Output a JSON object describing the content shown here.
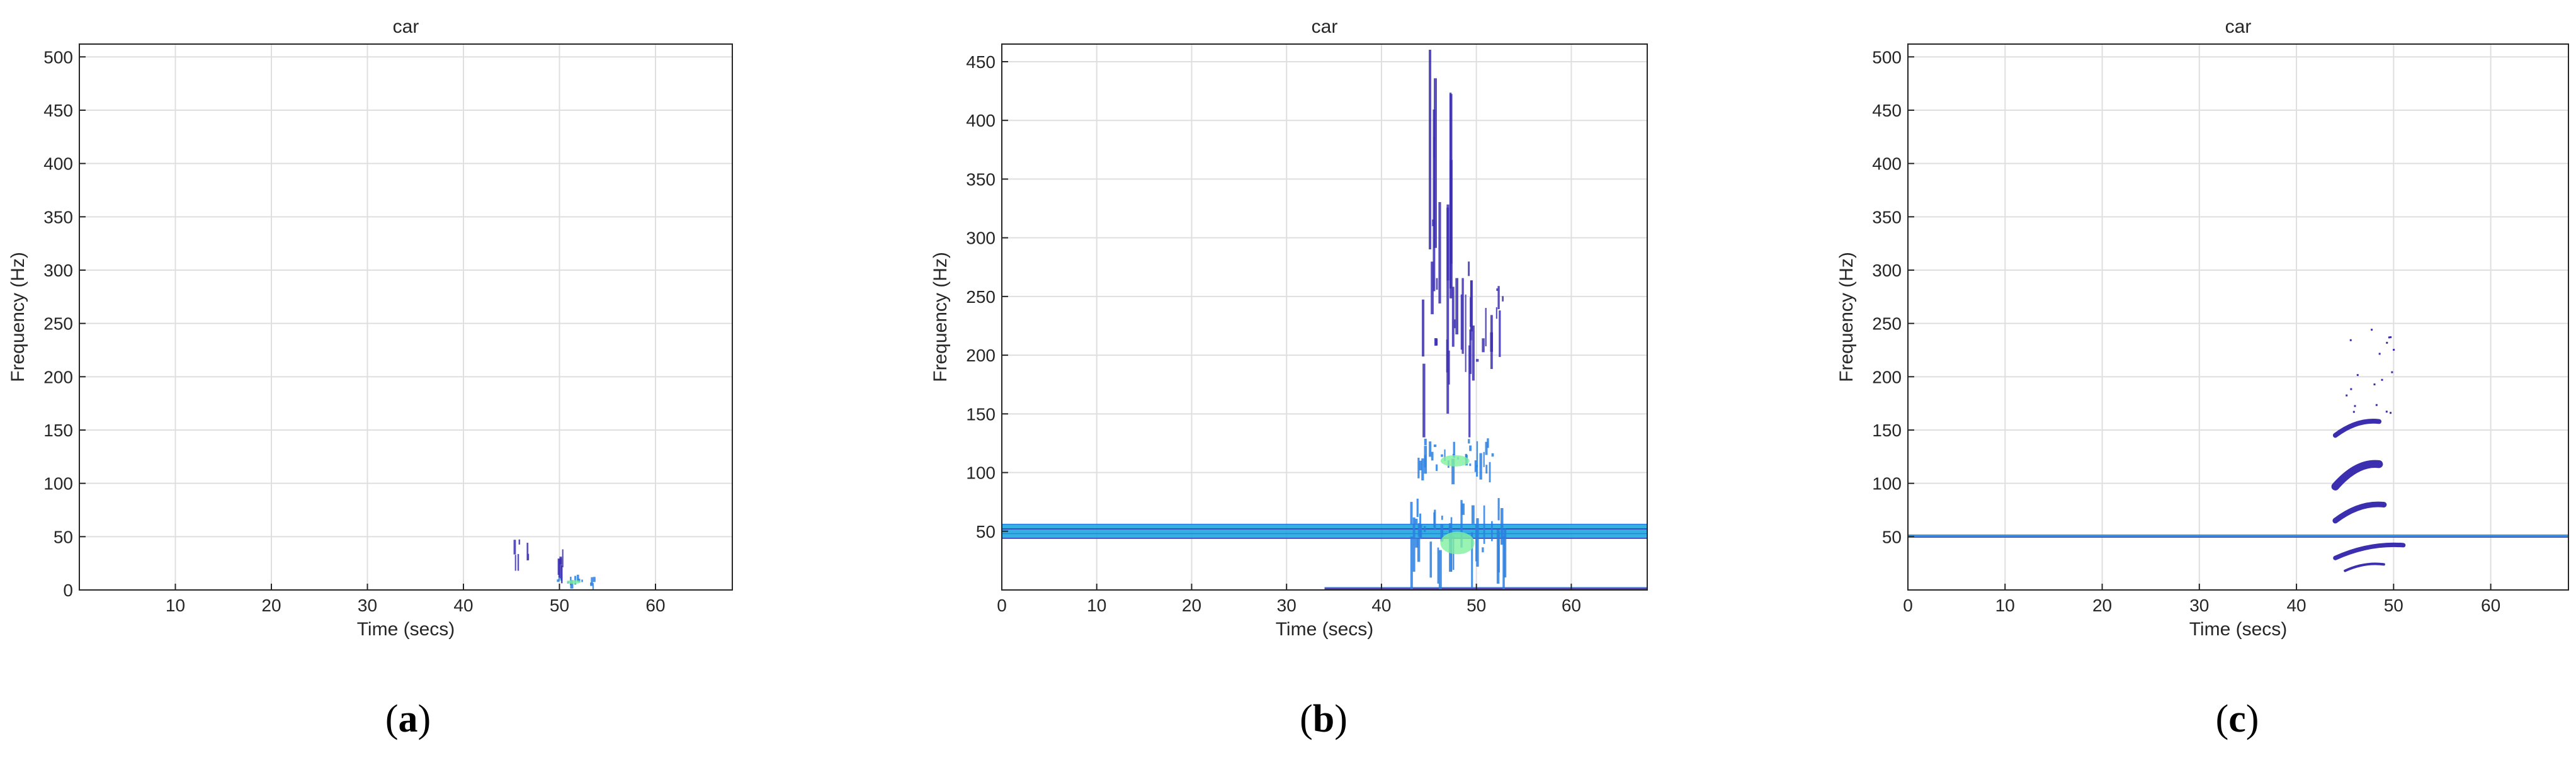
{
  "chart_data": [
    {
      "type": "heatmap",
      "title": "car",
      "xlabel": "Time (secs)",
      "ylabel": "Frequency (Hz)",
      "xlim": [
        0,
        68
      ],
      "ylim": [
        0,
        512
      ],
      "xticks": [
        10,
        20,
        30,
        40,
        50,
        60
      ],
      "yticks": [
        0,
        50,
        100,
        150,
        200,
        250,
        300,
        350,
        400,
        450,
        500
      ],
      "grid": true,
      "caption": "a",
      "features": [
        {
          "kind": "blob",
          "t": [
            45.2,
            46.8
          ],
          "f": [
            18,
            48
          ],
          "level": "low"
        },
        {
          "kind": "blob",
          "t": [
            49.5,
            53.5
          ],
          "f": [
            0,
            15
          ],
          "level": "mid"
        },
        {
          "kind": "blob",
          "t": [
            49.8,
            50.5
          ],
          "f": [
            0,
            40
          ],
          "level": "low"
        }
      ]
    },
    {
      "type": "heatmap",
      "title": "car",
      "xlabel": "Time (secs)",
      "ylabel": "Frequency (Hz)",
      "xlim": [
        0,
        68
      ],
      "ylim": [
        0,
        465
      ],
      "xticks": [
        0,
        10,
        20,
        30,
        40,
        50,
        60
      ],
      "yticks": [
        50,
        100,
        150,
        200,
        250,
        300,
        350,
        400,
        450
      ],
      "grid": true,
      "caption": "b",
      "features": [
        {
          "kind": "band",
          "t": [
            0,
            68
          ],
          "f": [
            44,
            56
          ],
          "level": "high"
        },
        {
          "kind": "band",
          "t": [
            34,
            68
          ],
          "f": [
            0,
            2
          ],
          "level": "low"
        },
        {
          "kind": "blob",
          "t": [
            44.5,
            47.5
          ],
          "f": [
            150,
            465
          ],
          "level": "low"
        },
        {
          "kind": "blob",
          "t": [
            44,
            50
          ],
          "f": [
            130,
            280
          ],
          "level": "low"
        },
        {
          "kind": "blob",
          "t": [
            50.5,
            53
          ],
          "f": [
            180,
            260
          ],
          "level": "low"
        },
        {
          "kind": "blob",
          "t": [
            43.5,
            52
          ],
          "f": [
            90,
            130
          ],
          "level": "mid"
        },
        {
          "kind": "blob",
          "t": [
            43,
            53
          ],
          "f": [
            0,
            80
          ],
          "level": "mid"
        }
      ]
    },
    {
      "type": "heatmap",
      "title": "car",
      "xlabel": "Time (secs)",
      "ylabel": "Frequency (Hz)",
      "xlim": [
        0,
        68
      ],
      "ylim": [
        0,
        512
      ],
      "xticks": [
        0,
        10,
        20,
        30,
        40,
        50,
        60
      ],
      "yticks": [
        50,
        100,
        150,
        200,
        250,
        300,
        350,
        400,
        450,
        500
      ],
      "grid": true,
      "caption": "c",
      "features": [
        {
          "kind": "band",
          "t": [
            0,
            68
          ],
          "f": [
            49.5,
            51.5
          ],
          "level": "high"
        },
        {
          "kind": "harmonic",
          "t": [
            44,
            48.5
          ],
          "f": [
            145,
            158
          ],
          "level": "low"
        },
        {
          "kind": "harmonic",
          "t": [
            44,
            48.5
          ],
          "f": [
            97,
            118
          ],
          "level": "low"
        },
        {
          "kind": "harmonic",
          "t": [
            44,
            49
          ],
          "f": [
            65,
            80
          ],
          "level": "low"
        },
        {
          "kind": "harmonic",
          "t": [
            44,
            51
          ],
          "f": [
            30,
            42
          ],
          "level": "low"
        },
        {
          "kind": "harmonic",
          "t": [
            45,
            49
          ],
          "f": [
            18,
            24
          ],
          "level": "low"
        },
        {
          "kind": "scatter",
          "t": [
            45,
            50
          ],
          "f": [
            160,
            262
          ],
          "level": "low"
        }
      ]
    }
  ],
  "colors": {
    "axes_border": "#262626",
    "grid": "#dfdfdf",
    "low": "#3b2fb0",
    "mid": "#2a7fe0",
    "high": "#1fa8e0",
    "peak": "#7ff0a0"
  }
}
